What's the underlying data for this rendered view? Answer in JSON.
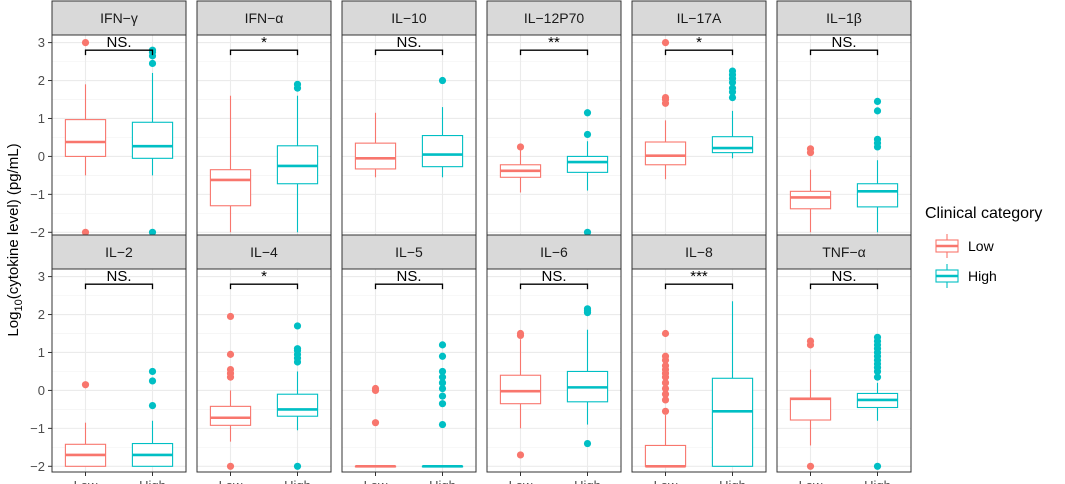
{
  "chart_data": {
    "type": "boxplot",
    "ylabel_prefix": "Log",
    "ylabel_subscript": "10",
    "ylabel_suffix": "(cytokine level) (pg/mL)",
    "categories": [
      "Low",
      "High"
    ],
    "ylim": [
      -2.15,
      3.2
    ],
    "yticks": [
      -2,
      -1,
      0,
      1,
      2,
      3
    ],
    "grid": true,
    "legend": {
      "title": "Clinical category",
      "position": "right",
      "entries": [
        {
          "name": "Low",
          "color": "#F8766D"
        },
        {
          "name": "High",
          "color": "#00BFC4"
        }
      ]
    },
    "panels": [
      {
        "title": "IFN−γ",
        "sig": "NS.",
        "boxes": [
          {
            "min": -0.5,
            "q1": 0.0,
            "median": 0.38,
            "q3": 0.97,
            "max": 1.9,
            "outliers": [
              3.0,
              -2.0
            ]
          },
          {
            "min": -0.5,
            "q1": -0.05,
            "median": 0.27,
            "q3": 0.9,
            "max": 2.2,
            "outliers": [
              2.45,
              2.65,
              2.75,
              2.8,
              -2.0
            ]
          }
        ]
      },
      {
        "title": "IFN−α",
        "sig": "*",
        "boxes": [
          {
            "min": -2.0,
            "q1": -1.3,
            "median": -0.62,
            "q3": -0.35,
            "max": 1.6,
            "outliers": []
          },
          {
            "min": -2.0,
            "q1": -0.72,
            "median": -0.25,
            "q3": 0.28,
            "max": 1.6,
            "outliers": [
              1.8,
              1.9
            ]
          }
        ]
      },
      {
        "title": "IL−10",
        "sig": "NS.",
        "boxes": [
          {
            "min": -0.55,
            "q1": -0.33,
            "median": -0.05,
            "q3": 0.35,
            "max": 1.15,
            "outliers": []
          },
          {
            "min": -0.55,
            "q1": -0.27,
            "median": 0.05,
            "q3": 0.55,
            "max": 1.3,
            "outliers": [
              2.0
            ]
          }
        ]
      },
      {
        "title": "IL−12P70",
        "sig": "**",
        "boxes": [
          {
            "min": -0.95,
            "q1": -0.55,
            "median": -0.38,
            "q3": -0.22,
            "max": 0.25,
            "outliers": [
              0.25
            ]
          },
          {
            "min": -0.9,
            "q1": -0.42,
            "median": -0.15,
            "q3": 0.0,
            "max": 0.4,
            "outliers": [
              0.58,
              1.15,
              -2.0
            ]
          }
        ]
      },
      {
        "title": "IL−17A",
        "sig": "*",
        "boxes": [
          {
            "min": -0.6,
            "q1": -0.22,
            "median": 0.02,
            "q3": 0.38,
            "max": 0.95,
            "outliers": [
              1.4,
              1.5,
              1.55,
              3.0
            ]
          },
          {
            "min": -0.05,
            "q1": 0.1,
            "median": 0.22,
            "q3": 0.52,
            "max": 1.2,
            "outliers": [
              1.55,
              1.7,
              1.8,
              1.95,
              2.05,
              2.15,
              2.25
            ]
          }
        ]
      },
      {
        "title": "IL−1β",
        "sig": "NS.",
        "boxes": [
          {
            "min": -2.0,
            "q1": -1.38,
            "median": -1.08,
            "q3": -0.92,
            "max": -0.35,
            "outliers": [
              0.1,
              0.2
            ]
          },
          {
            "min": -2.0,
            "q1": -1.33,
            "median": -0.92,
            "q3": -0.72,
            "max": -0.1,
            "outliers": [
              0.25,
              0.35,
              0.45,
              1.2,
              1.45
            ]
          }
        ]
      },
      {
        "title": "IL−2",
        "sig": "NS.",
        "boxes": [
          {
            "min": -2.0,
            "q1": -2.0,
            "median": -1.7,
            "q3": -1.42,
            "max": -0.85,
            "outliers": [
              0.15
            ]
          },
          {
            "min": -2.0,
            "q1": -2.0,
            "median": -1.7,
            "q3": -1.4,
            "max": -0.8,
            "outliers": [
              -0.4,
              0.25,
              0.5
            ]
          }
        ]
      },
      {
        "title": "IL−4",
        "sig": "*",
        "boxes": [
          {
            "min": -1.35,
            "q1": -0.92,
            "median": -0.72,
            "q3": -0.42,
            "max": 0.0,
            "outliers": [
              0.35,
              0.45,
              0.55,
              0.95,
              1.95,
              -2.0
            ]
          },
          {
            "min": -1.05,
            "q1": -0.68,
            "median": -0.5,
            "q3": -0.1,
            "max": 0.5,
            "outliers": [
              0.75,
              0.85,
              0.95,
              1.05,
              1.1,
              1.7,
              -2.0
            ]
          }
        ]
      },
      {
        "title": "IL−5",
        "sig": "NS.",
        "boxes": [
          {
            "min": -2.0,
            "q1": -2.0,
            "median": -2.0,
            "q3": -2.0,
            "max": -2.0,
            "outliers": [
              -0.85,
              0.0,
              0.05
            ]
          },
          {
            "min": -2.0,
            "q1": -2.0,
            "median": -2.0,
            "q3": -2.0,
            "max": -2.0,
            "outliers": [
              -0.9,
              -0.35,
              -0.15,
              0.05,
              0.2,
              0.35,
              0.5,
              0.9,
              1.2
            ]
          }
        ]
      },
      {
        "title": "IL−6",
        "sig": "NS.",
        "boxes": [
          {
            "min": -1.0,
            "q1": -0.35,
            "median": -0.02,
            "q3": 0.4,
            "max": 1.35,
            "outliers": [
              1.45,
              1.5,
              -1.7
            ]
          },
          {
            "min": -0.9,
            "q1": -0.3,
            "median": 0.08,
            "q3": 0.5,
            "max": 1.6,
            "outliers": [
              2.05,
              2.1,
              2.15,
              -1.4
            ]
          }
        ]
      },
      {
        "title": "IL−8",
        "sig": "***",
        "boxes": [
          {
            "min": -2.0,
            "q1": -2.0,
            "median": -2.0,
            "q3": -1.45,
            "max": -0.65,
            "outliers": [
              -0.55,
              -0.25,
              -0.1,
              0.05,
              0.2,
              0.35,
              0.45,
              0.55,
              0.65,
              0.8,
              0.9,
              1.5
            ]
          },
          {
            "min": -2.0,
            "q1": -2.0,
            "median": -0.55,
            "q3": 0.32,
            "max": 2.35,
            "outliers": []
          }
        ]
      },
      {
        "title": "TNF−α",
        "sig": "NS.",
        "boxes": [
          {
            "min": -1.45,
            "q1": -0.78,
            "median": -0.22,
            "q3": -0.2,
            "max": 0.55,
            "outliers": [
              1.2,
              1.3,
              -2.0
            ]
          },
          {
            "min": -0.8,
            "q1": -0.45,
            "median": -0.25,
            "q3": -0.08,
            "max": 0.2,
            "outliers": [
              0.35,
              0.5,
              0.6,
              0.7,
              0.8,
              0.9,
              1.0,
              1.1,
              1.2,
              1.3,
              1.4,
              -2.0
            ]
          }
        ]
      }
    ]
  }
}
